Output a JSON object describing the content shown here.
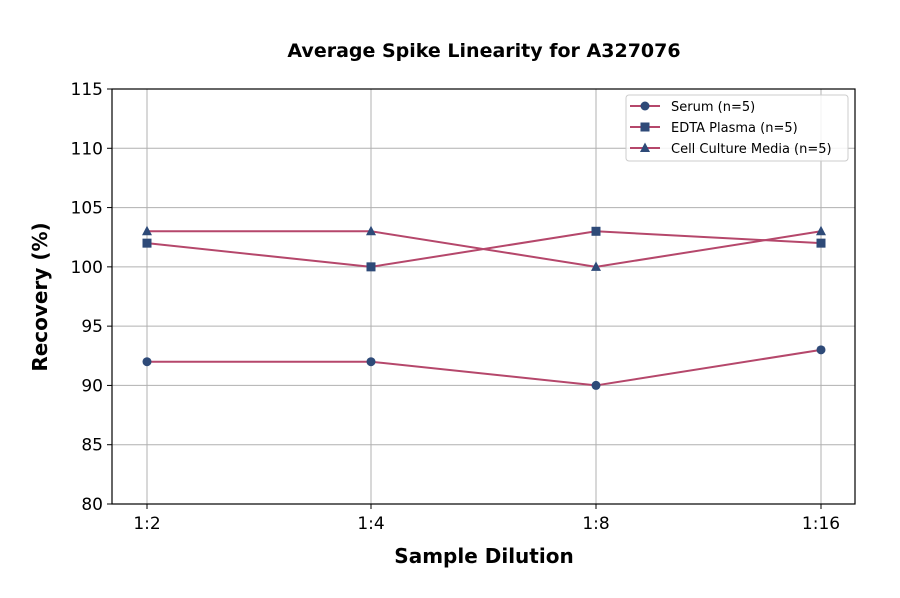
{
  "chart_data": {
    "type": "line",
    "title": "Average Spike Linearity for A327076",
    "xlabel": "Sample Dilution",
    "ylabel": "Recovery (%)",
    "categories": [
      "1:2",
      "1:4",
      "1:8",
      "1:16"
    ],
    "ylim": [
      80,
      115
    ],
    "yticks": [
      80,
      85,
      90,
      95,
      100,
      105,
      110,
      115
    ],
    "grid": true,
    "legend_placement": "top-right",
    "line_color": "#b5476b",
    "marker_color": "#2e4a78",
    "series": [
      {
        "name": "Serum (n=5)",
        "marker": "circle",
        "values": [
          92,
          92,
          90,
          93
        ]
      },
      {
        "name": "EDTA Plasma (n=5)",
        "marker": "square",
        "values": [
          102,
          100,
          103,
          102
        ]
      },
      {
        "name": "Cell Culture Media (n=5)",
        "marker": "triangle",
        "values": [
          103,
          103,
          100,
          103
        ]
      }
    ]
  }
}
